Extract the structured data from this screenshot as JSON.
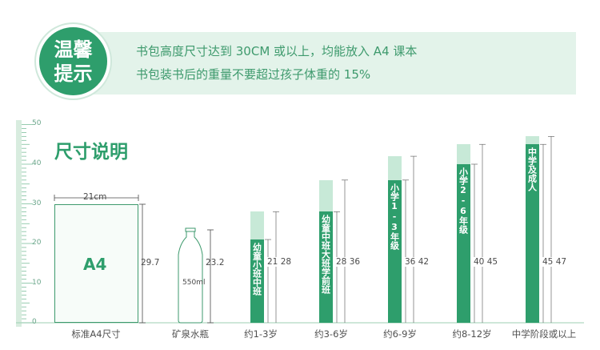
{
  "tip": {
    "badge_line1": "温馨",
    "badge_line2": "提示",
    "line1": "书包高度尺寸达到 30CM 或以上，均能放入 A4 课本",
    "line2": "书包装书后的重量不要超过孩子体重的 15%"
  },
  "section_title": "尺寸说明",
  "axis": {
    "ticks": [
      "50",
      "40",
      "30",
      "20",
      "10",
      "0"
    ]
  },
  "a4": {
    "text": "A4",
    "width_label": "21cm",
    "height_label": "29.7"
  },
  "bottle": {
    "volume": "550ml",
    "height_label": "23.2"
  },
  "columns": [
    {
      "id": "k1",
      "lower": 21,
      "upper": 28,
      "range_label": "21  28",
      "text": "幼童小班中班"
    },
    {
      "id": "k2",
      "lower": 28,
      "upper": 36,
      "range_label": "28  36",
      "text": "幼童中班大班学前班"
    },
    {
      "id": "p1",
      "lower": 36,
      "upper": 42,
      "range_label": "36  42",
      "text": "小学1-3年级"
    },
    {
      "id": "p2",
      "lower": 40,
      "upper": 45,
      "range_label": "40  45",
      "text": "小学2-6年级"
    },
    {
      "id": "ms",
      "lower": 45,
      "upper": 47,
      "range_label": "45  47",
      "text": "中学及成人"
    }
  ],
  "categories": [
    "标准A4尺寸",
    "矿泉水瓶",
    "约1-3岁",
    "约3-6岁",
    "约6-9岁",
    "约8-12岁",
    "中学阶段或以上"
  ],
  "colors": {
    "primary": "#2e9e6c",
    "light": "#c7e9d7",
    "banner": "#e3f3ea"
  }
}
